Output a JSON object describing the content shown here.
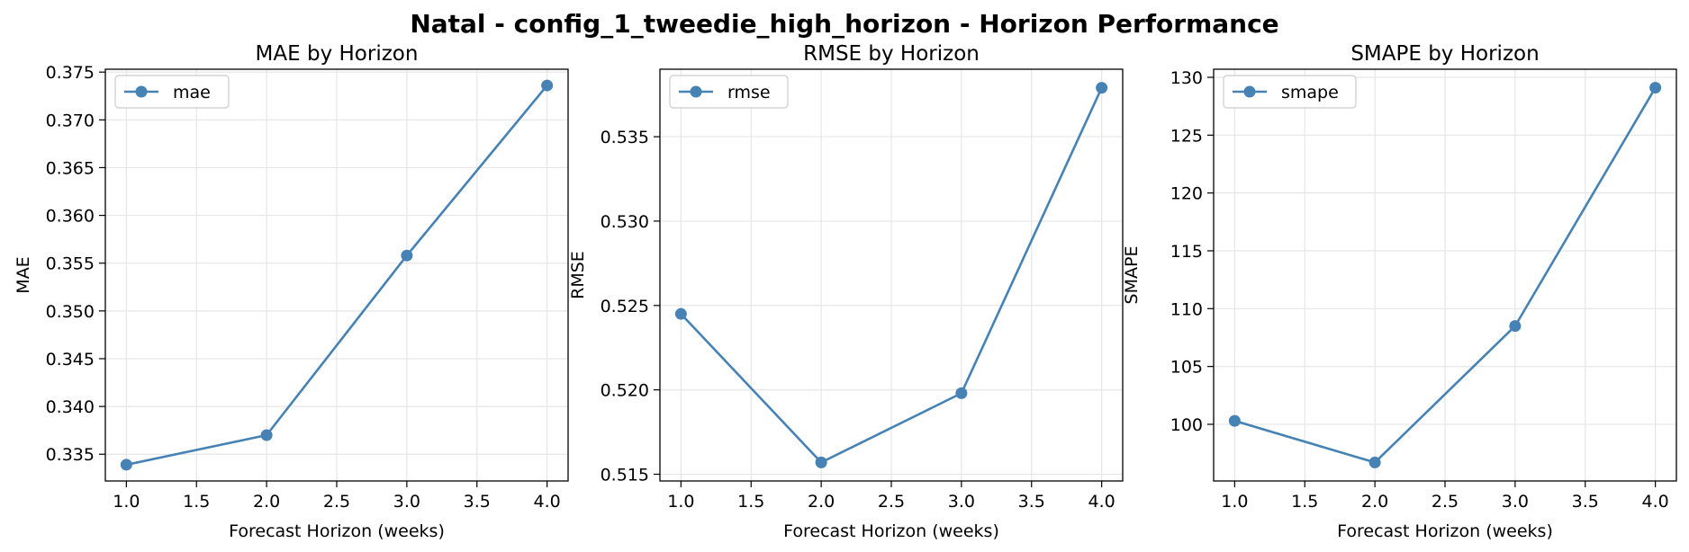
{
  "figure": {
    "title": "Natal - config_1_tweedie_high_horizon - Horizon Performance"
  },
  "colors": {
    "series": "#4682b4",
    "grid": "#e6e6e6",
    "axes": "#000000",
    "legend_border": "#cccccc"
  },
  "chart_data": [
    {
      "type": "line",
      "title": "MAE by Horizon",
      "xlabel": "Forecast Horizon (weeks)",
      "ylabel": "MAE",
      "x": [
        1.0,
        2.0,
        3.0,
        4.0
      ],
      "series": [
        {
          "name": "mae",
          "values": [
            0.3339,
            0.337,
            0.3558,
            0.3736
          ]
        }
      ],
      "xlim": [
        0.85,
        4.15
      ],
      "ylim": [
        0.3322,
        0.3753
      ],
      "xticks": [
        1.0,
        1.5,
        2.0,
        2.5,
        3.0,
        3.5,
        4.0
      ],
      "xtick_labels": [
        "1.0",
        "1.5",
        "2.0",
        "2.5",
        "3.0",
        "3.5",
        "4.0"
      ],
      "yticks": [
        0.335,
        0.34,
        0.345,
        0.35,
        0.355,
        0.36,
        0.365,
        0.37,
        0.375
      ],
      "ytick_labels": [
        "0.335",
        "0.340",
        "0.345",
        "0.350",
        "0.355",
        "0.360",
        "0.365",
        "0.370",
        "0.375"
      ],
      "grid": true,
      "legend": "top-left",
      "marker": "circle"
    },
    {
      "type": "line",
      "title": "RMSE by Horizon",
      "xlabel": "Forecast Horizon (weeks)",
      "ylabel": "RMSE",
      "x": [
        1.0,
        2.0,
        3.0,
        4.0
      ],
      "series": [
        {
          "name": "rmse",
          "values": [
            0.5245,
            0.5157,
            0.5198,
            0.5379
          ]
        }
      ],
      "xlim": [
        0.85,
        4.15
      ],
      "ylim": [
        0.5146,
        0.539
      ],
      "xticks": [
        1.0,
        1.5,
        2.0,
        2.5,
        3.0,
        3.5,
        4.0
      ],
      "xtick_labels": [
        "1.0",
        "1.5",
        "2.0",
        "2.5",
        "3.0",
        "3.5",
        "4.0"
      ],
      "yticks": [
        0.515,
        0.52,
        0.525,
        0.53,
        0.535
      ],
      "ytick_labels": [
        "0.515",
        "0.520",
        "0.525",
        "0.530",
        "0.535"
      ],
      "grid": true,
      "legend": "top-left",
      "marker": "circle"
    },
    {
      "type": "line",
      "title": "SMAPE by Horizon",
      "xlabel": "Forecast Horizon (weeks)",
      "ylabel": "SMAPE",
      "x": [
        1.0,
        2.0,
        3.0,
        4.0
      ],
      "series": [
        {
          "name": "smape",
          "values": [
            100.3,
            96.7,
            108.5,
            129.1
          ]
        }
      ],
      "xlim": [
        0.85,
        4.15
      ],
      "ylim": [
        95.1,
        130.7
      ],
      "xticks": [
        1.0,
        1.5,
        2.0,
        2.5,
        3.0,
        3.5,
        4.0
      ],
      "xtick_labels": [
        "1.0",
        "1.5",
        "2.0",
        "2.5",
        "3.0",
        "3.5",
        "4.0"
      ],
      "yticks": [
        100,
        105,
        110,
        115,
        120,
        125,
        130
      ],
      "ytick_labels": [
        "100",
        "105",
        "110",
        "115",
        "120",
        "125",
        "130"
      ],
      "grid": true,
      "legend": "top-left",
      "marker": "circle"
    }
  ]
}
